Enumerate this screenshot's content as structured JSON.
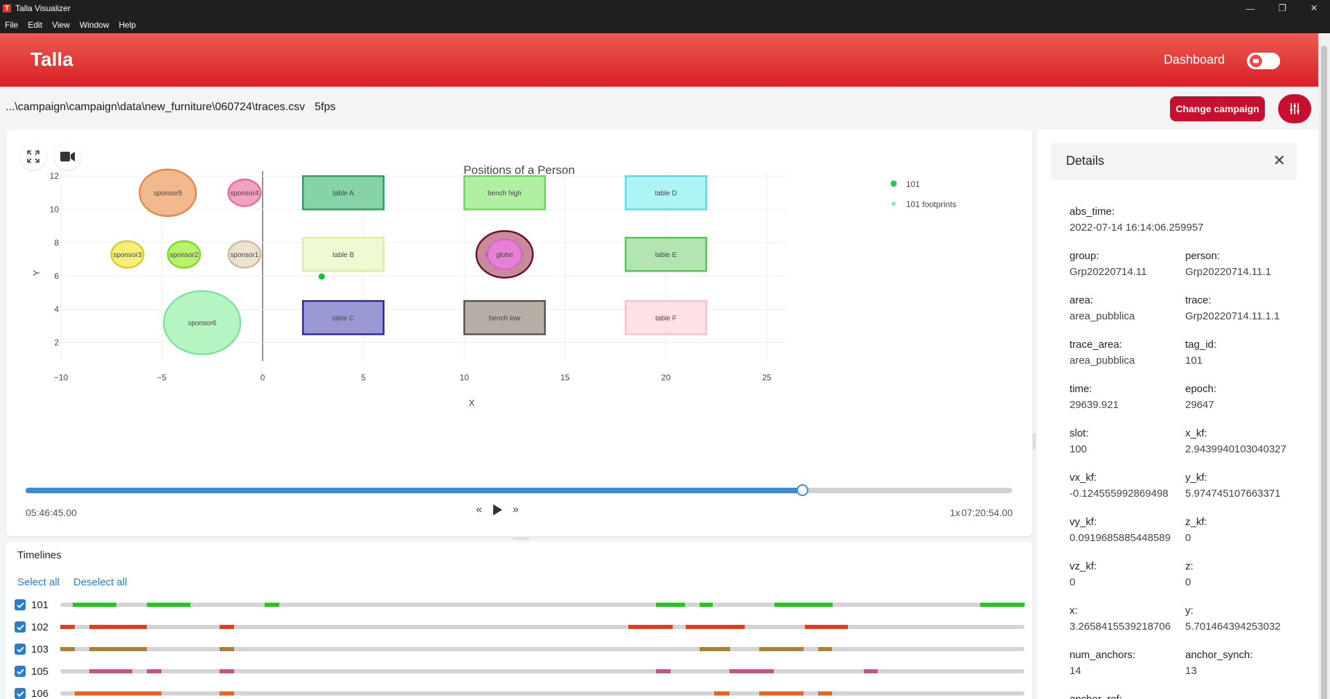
{
  "window": {
    "title": "Talla Visualizer",
    "logo_letter": "T",
    "controls": [
      "—",
      "❐",
      "✕"
    ]
  },
  "menu": [
    "File",
    "Edit",
    "View",
    "Window",
    "Help"
  ],
  "header": {
    "brand": "Talla",
    "dashboard_label": "Dashboard"
  },
  "pathbar": {
    "path": "...\\campaign\\campaign\\data\\new_furniture\\060724\\traces.csv",
    "fps": "5fps",
    "change_campaign": "Change campaign"
  },
  "player": {
    "start_time": "05:46:45.00",
    "end_time": "07:20:54.00",
    "speed": "1x",
    "progress": 0.787
  },
  "chart_data": {
    "type": "scatter",
    "title": "Positions of a Person",
    "xlabel": "X",
    "ylabel": "Y",
    "xlim": [
      -10,
      26
    ],
    "ylim": [
      0.9,
      12.3
    ],
    "x_ticks": [
      -10,
      -5,
      0,
      5,
      10,
      15,
      20,
      25
    ],
    "y_ticks": [
      2,
      4,
      6,
      8,
      10,
      12
    ],
    "grid": true,
    "legend_position": "top-right",
    "legend": [
      {
        "name": "101",
        "color": "#22c55e"
      },
      {
        "name": "101 footprints",
        "color": "#86efac"
      }
    ],
    "points": [
      {
        "series": "101",
        "x": 2.93,
        "y": 5.97
      }
    ],
    "shapes": [
      {
        "label": "sponsor5",
        "kind": "ellipse",
        "cx": -4.7,
        "cy": 11.0,
        "rx": 1.4,
        "ry": 1.4,
        "fill": "#f1b98c",
        "stroke": "#e0884a"
      },
      {
        "label": "sponsor4",
        "kind": "ellipse",
        "cx": -0.9,
        "cy": 11.0,
        "rx": 0.8,
        "ry": 0.8,
        "fill": "#f3a1c2",
        "stroke": "#e26d9d"
      },
      {
        "label": "sponsor3",
        "kind": "ellipse",
        "cx": -6.7,
        "cy": 7.3,
        "rx": 0.8,
        "ry": 0.8,
        "fill": "#f6f07a",
        "stroke": "#d6cc2a"
      },
      {
        "label": "sponsor2",
        "kind": "ellipse",
        "cx": -3.9,
        "cy": 7.3,
        "rx": 0.8,
        "ry": 0.8,
        "fill": "#b8f46a",
        "stroke": "#7dd82a"
      },
      {
        "label": "sponsor1",
        "kind": "ellipse",
        "cx": -0.9,
        "cy": 7.3,
        "rx": 0.8,
        "ry": 0.8,
        "fill": "#ece3cf",
        "stroke": "#cbbd9b"
      },
      {
        "label": "sponsor6",
        "kind": "ellipse",
        "cx": -3.0,
        "cy": 3.2,
        "rx": 1.9,
        "ry": 1.9,
        "fill": "#b4f5c2",
        "stroke": "#7ee39a"
      },
      {
        "label": "table A",
        "kind": "rect",
        "x0": 2,
        "x1": 6,
        "y0": 10.0,
        "y1": 12.0,
        "fill": "#86d3a8",
        "stroke": "#2f9f62"
      },
      {
        "label": "bench high",
        "kind": "rect",
        "x0": 10,
        "x1": 14,
        "y0": 10.0,
        "y1": 12.0,
        "fill": "#b1efa5",
        "stroke": "#6bd75a"
      },
      {
        "label": "table D",
        "kind": "rect",
        "x0": 18,
        "x1": 22,
        "y0": 10.0,
        "y1": 12.0,
        "fill": "#aef3f5",
        "stroke": "#5fd8e0"
      },
      {
        "label": "table B",
        "kind": "rect",
        "x0": 2,
        "x1": 6,
        "y0": 6.3,
        "y1": 8.3,
        "fill": "#eefad3",
        "stroke": "#d8efa8"
      },
      {
        "label": "table E",
        "kind": "rect",
        "x0": 18,
        "x1": 22,
        "y0": 6.3,
        "y1": 8.3,
        "fill": "#b2e5b2",
        "stroke": "#5cbf5c"
      },
      {
        "label": "table C",
        "kind": "rect",
        "x0": 2,
        "x1": 6,
        "y0": 2.5,
        "y1": 4.5,
        "fill": "#9b98d6",
        "stroke": "#2a2a9a"
      },
      {
        "label": "bench low",
        "kind": "rect",
        "x0": 10,
        "x1": 14,
        "y0": 2.5,
        "y1": 4.5,
        "fill": "#b7aea6",
        "stroke": "#5a5149"
      },
      {
        "label": "table F",
        "kind": "rect",
        "x0": 18,
        "x1": 22,
        "y0": 2.5,
        "y1": 4.5,
        "fill": "#fde1e7",
        "stroke": "#f7c1cc"
      },
      {
        "label": "bench globe",
        "kind": "ellipse",
        "cx": 12,
        "cy": 7.3,
        "rx": 1.4,
        "ry": 1.4,
        "fill": "#c98a9b",
        "stroke": "#6a1020"
      },
      {
        "label": "globe",
        "kind": "ellipse",
        "cx": 12,
        "cy": 7.3,
        "rx": 0.85,
        "ry": 0.9,
        "fill": "#e880d8",
        "stroke": "#d46ac6"
      }
    ]
  },
  "timelines": {
    "title": "Timelines",
    "select_all": "Select all",
    "deselect_all": "Deselect all",
    "rows": [
      {
        "id": "101",
        "color": "#22c81e",
        "segments": [
          [
            0.013,
            0.058
          ],
          [
            0.09,
            0.135
          ],
          [
            0.212,
            0.227
          ],
          [
            0.618,
            0.648
          ],
          [
            0.663,
            0.677
          ],
          [
            0.741,
            0.801
          ],
          [
            0.954,
            1.0
          ]
        ]
      },
      {
        "id": "102",
        "color": "#e13c21",
        "segments": [
          [
            0.0,
            0.015
          ],
          [
            0.03,
            0.09
          ],
          [
            0.165,
            0.18
          ],
          [
            0.589,
            0.635
          ],
          [
            0.649,
            0.71
          ],
          [
            0.772,
            0.817
          ]
        ]
      },
      {
        "id": "103",
        "color": "#a68335",
        "segments": [
          [
            0.0,
            0.015
          ],
          [
            0.03,
            0.09
          ],
          [
            0.165,
            0.18
          ],
          [
            0.663,
            0.695
          ],
          [
            0.725,
            0.771
          ],
          [
            0.786,
            0.8
          ]
        ]
      },
      {
        "id": "105",
        "color": "#c2558e",
        "segments": [
          [
            0.03,
            0.075
          ],
          [
            0.09,
            0.105
          ],
          [
            0.165,
            0.18
          ],
          [
            0.618,
            0.633
          ],
          [
            0.694,
            0.71
          ],
          [
            0.71,
            0.74
          ],
          [
            0.833,
            0.848
          ]
        ]
      },
      {
        "id": "106",
        "color": "#e0692a",
        "segments": [
          [
            0.015,
            0.105
          ],
          [
            0.165,
            0.18
          ],
          [
            0.678,
            0.694
          ],
          [
            0.725,
            0.771
          ],
          [
            0.786,
            0.8
          ]
        ]
      }
    ]
  },
  "details": {
    "title": "Details",
    "fields": [
      {
        "k": "abs_time:",
        "v": "2022-07-14 16:14:06.259957",
        "col": 0,
        "row": 0
      },
      {
        "k": "group:",
        "v": "Grp20220714.11",
        "col": 0,
        "row": 1
      },
      {
        "k": "person:",
        "v": "Grp20220714.11.1",
        "col": 1,
        "row": 1
      },
      {
        "k": "area:",
        "v": "area_pubblica",
        "col": 0,
        "row": 2
      },
      {
        "k": "trace:",
        "v": "Grp20220714.11.1.1",
        "col": 1,
        "row": 2
      },
      {
        "k": "trace_area:",
        "v": "area_pubblica",
        "col": 0,
        "row": 3
      },
      {
        "k": "tag_id:",
        "v": "101",
        "col": 1,
        "row": 3
      },
      {
        "k": "time:",
        "v": "29639.921",
        "col": 0,
        "row": 4
      },
      {
        "k": "epoch:",
        "v": "29647",
        "col": 1,
        "row": 4
      },
      {
        "k": "slot:",
        "v": "100",
        "col": 0,
        "row": 5
      },
      {
        "k": "x_kf:",
        "v": "2.9439940103040327",
        "col": 1,
        "row": 5
      },
      {
        "k": "vx_kf:",
        "v": "-0.124555992869498",
        "col": 0,
        "row": 6
      },
      {
        "k": "y_kf:",
        "v": "5.974745107663371",
        "col": 1,
        "row": 6
      },
      {
        "k": "vy_kf:",
        "v": "0.0919685885448589",
        "col": 0,
        "row": 7
      },
      {
        "k": "z_kf:",
        "v": "0",
        "col": 1,
        "row": 7
      },
      {
        "k": "vz_kf:",
        "v": "0",
        "col": 0,
        "row": 8
      },
      {
        "k": "z:",
        "v": "0",
        "col": 1,
        "row": 8
      },
      {
        "k": "x:",
        "v": "3.2658415539218706",
        "col": 0,
        "row": 9
      },
      {
        "k": "y:",
        "v": "5.701464394253032",
        "col": 1,
        "row": 9
      },
      {
        "k": "num_anchors:",
        "v": "14",
        "col": 0,
        "row": 10
      },
      {
        "k": "anchor_synch:",
        "v": "13",
        "col": 1,
        "row": 10
      },
      {
        "k": "anchor_ref:",
        "v": "",
        "col": 0,
        "row": 11
      }
    ]
  }
}
